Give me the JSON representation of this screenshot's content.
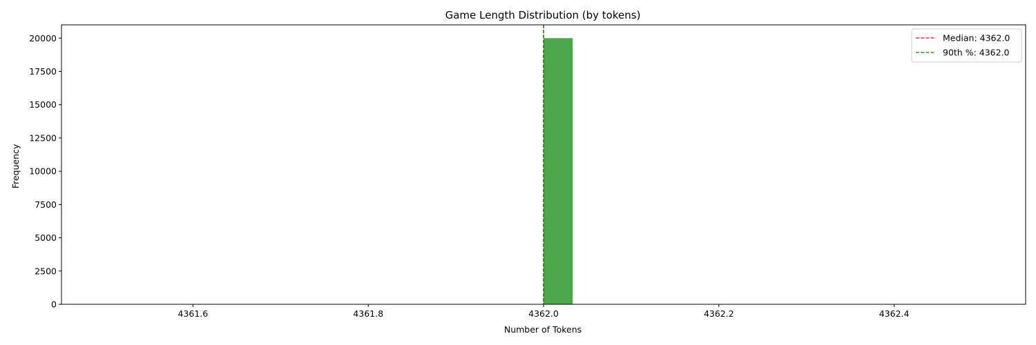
{
  "chart_data": {
    "type": "bar",
    "title": "Game Length Distribution (by tokens)",
    "xlabel": "Number of Tokens",
    "ylabel": "Frequency",
    "xlim": [
      4361.45,
      4362.55
    ],
    "ylim": [
      0,
      21000
    ],
    "x_ticks": [
      4361.6,
      4361.8,
      4362.0,
      4362.2,
      4362.4
    ],
    "x_tick_labels": [
      "4361.6",
      "4361.8",
      "4362.0",
      "4362.2",
      "4362.4"
    ],
    "y_ticks": [
      0,
      2500,
      5000,
      7500,
      10000,
      12500,
      15000,
      17500,
      20000
    ],
    "y_tick_labels": [
      "0",
      "2500",
      "5000",
      "7500",
      "10000",
      "12500",
      "15000",
      "17500",
      "20000"
    ],
    "bins": [
      {
        "x_start": 4362.0,
        "x_end": 4362.0333,
        "count": 20000
      }
    ],
    "bar_color": "#4ca64c",
    "reference_lines": [
      {
        "name": "Median: 4362.0",
        "x": 4362.0,
        "color": "#ff0000"
      },
      {
        "name": "90th %: 4362.0",
        "x": 4362.0,
        "color": "#008000"
      }
    ],
    "legend_position": "top-right",
    "grid": false
  }
}
